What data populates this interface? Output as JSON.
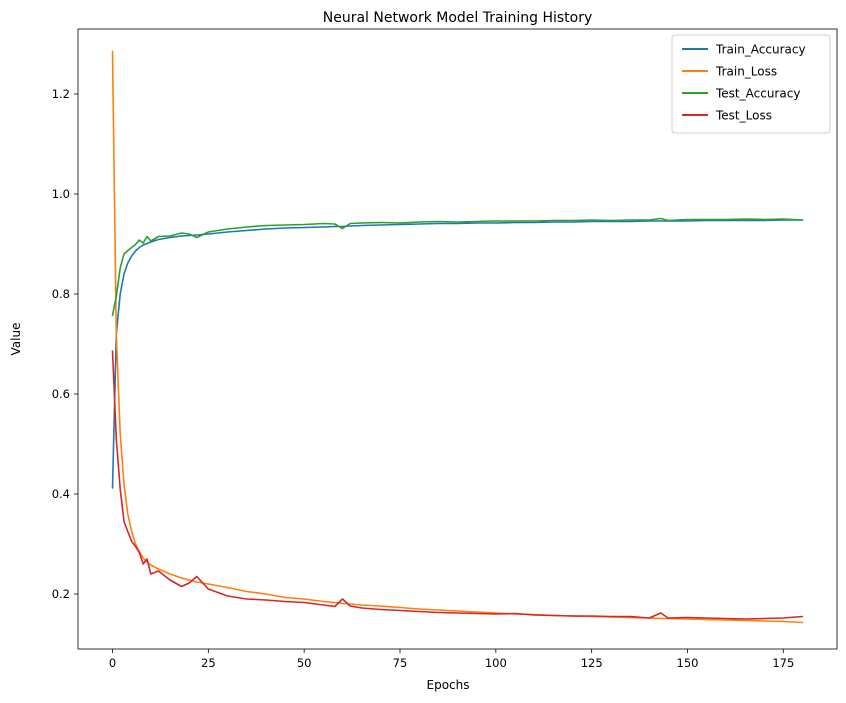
{
  "chart_data": {
    "type": "line",
    "title": "Neural Network Model Training History",
    "xlabel": "Epochs",
    "ylabel": "Value",
    "xlim": [
      -9,
      189
    ],
    "ylim": [
      0.09,
      1.33
    ],
    "x_ticks": [
      0,
      25,
      50,
      75,
      100,
      125,
      150,
      175
    ],
    "y_ticks": [
      0.2,
      0.4,
      0.6,
      0.8,
      1.0,
      1.2
    ],
    "x_tick_labels": [
      "0",
      "25",
      "50",
      "75",
      "100",
      "125",
      "150",
      "175"
    ],
    "y_tick_labels": [
      "0.2",
      "0.4",
      "0.6",
      "0.8",
      "1.0",
      "1.2"
    ],
    "grid": false,
    "legend_position": "top-right",
    "x": [
      0,
      1,
      2,
      3,
      4,
      5,
      6,
      7,
      8,
      9,
      10,
      12,
      15,
      18,
      20,
      22,
      25,
      30,
      35,
      40,
      45,
      50,
      55,
      58,
      60,
      62,
      65,
      70,
      75,
      80,
      85,
      90,
      95,
      100,
      105,
      110,
      115,
      120,
      125,
      130,
      135,
      140,
      143,
      145,
      150,
      155,
      160,
      165,
      170,
      175,
      180
    ],
    "series": [
      {
        "name": "Train_Accuracy",
        "color": "#1f77b4",
        "values": [
          0.412,
          0.72,
          0.8,
          0.84,
          0.862,
          0.876,
          0.886,
          0.893,
          0.898,
          0.901,
          0.904,
          0.909,
          0.913,
          0.916,
          0.917,
          0.918,
          0.92,
          0.924,
          0.927,
          0.93,
          0.932,
          0.933,
          0.934,
          0.935,
          0.935,
          0.936,
          0.937,
          0.938,
          0.939,
          0.94,
          0.941,
          0.941,
          0.942,
          0.942,
          0.943,
          0.943,
          0.944,
          0.944,
          0.945,
          0.945,
          0.945,
          0.946,
          0.946,
          0.946,
          0.946,
          0.947,
          0.947,
          0.947,
          0.947,
          0.948,
          0.948
        ]
      },
      {
        "name": "Train_Loss",
        "color": "#ff7f0e",
        "values": [
          1.285,
          0.72,
          0.52,
          0.42,
          0.36,
          0.325,
          0.3,
          0.285,
          0.272,
          0.264,
          0.258,
          0.25,
          0.24,
          0.232,
          0.228,
          0.224,
          0.22,
          0.213,
          0.205,
          0.2,
          0.193,
          0.19,
          0.185,
          0.183,
          0.181,
          0.18,
          0.178,
          0.176,
          0.173,
          0.17,
          0.168,
          0.166,
          0.164,
          0.162,
          0.16,
          0.159,
          0.157,
          0.156,
          0.155,
          0.154,
          0.153,
          0.152,
          0.151,
          0.151,
          0.15,
          0.149,
          0.148,
          0.147,
          0.146,
          0.145,
          0.143
        ]
      },
      {
        "name": "Test_Accuracy",
        "color": "#2ca02c",
        "values": [
          0.757,
          0.795,
          0.852,
          0.88,
          0.887,
          0.893,
          0.899,
          0.908,
          0.902,
          0.915,
          0.906,
          0.915,
          0.916,
          0.922,
          0.92,
          0.913,
          0.924,
          0.93,
          0.934,
          0.937,
          0.938,
          0.939,
          0.941,
          0.94,
          0.931,
          0.941,
          0.942,
          0.943,
          0.942,
          0.944,
          0.945,
          0.944,
          0.945,
          0.946,
          0.946,
          0.946,
          0.947,
          0.947,
          0.948,
          0.947,
          0.948,
          0.948,
          0.951,
          0.947,
          0.949,
          0.949,
          0.949,
          0.95,
          0.949,
          0.95,
          0.948
        ]
      },
      {
        "name": "Test_Loss",
        "color": "#d62728",
        "values": [
          0.686,
          0.51,
          0.41,
          0.345,
          0.325,
          0.305,
          0.295,
          0.283,
          0.26,
          0.27,
          0.24,
          0.246,
          0.228,
          0.215,
          0.222,
          0.235,
          0.21,
          0.196,
          0.19,
          0.188,
          0.185,
          0.183,
          0.178,
          0.175,
          0.19,
          0.176,
          0.172,
          0.169,
          0.167,
          0.165,
          0.163,
          0.162,
          0.161,
          0.16,
          0.161,
          0.158,
          0.157,
          0.156,
          0.156,
          0.155,
          0.155,
          0.152,
          0.162,
          0.152,
          0.153,
          0.152,
          0.151,
          0.15,
          0.151,
          0.152,
          0.155
        ]
      }
    ]
  }
}
